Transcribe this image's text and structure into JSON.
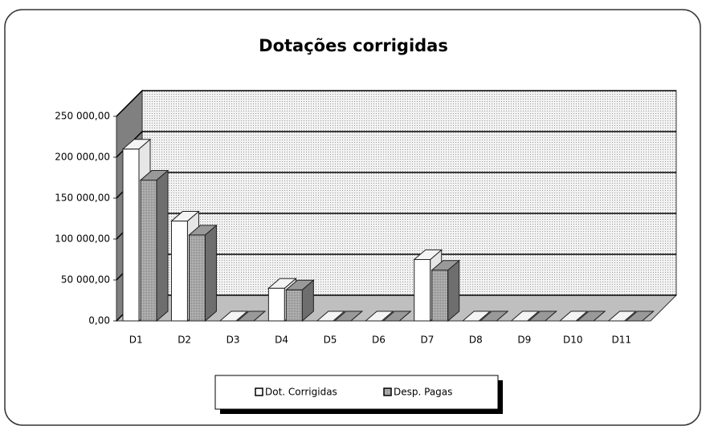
{
  "chart_data": {
    "type": "bar3d",
    "title": "Dotações corrigidas",
    "categories": [
      "D1",
      "D2",
      "D3",
      "D4",
      "D5",
      "D6",
      "D7",
      "D8",
      "D9",
      "D10",
      "D11"
    ],
    "series": [
      {
        "name": "Dot. Corrigidas",
        "color": "#ffffff",
        "values": [
          210000,
          122000,
          0,
          40000,
          0,
          0,
          75000,
          0,
          0,
          0,
          0
        ]
      },
      {
        "name": "Desp. Pagas",
        "color": "#a6a6a6",
        "values": [
          172000,
          105000,
          0,
          38000,
          0,
          0,
          62000,
          0,
          0,
          0,
          0
        ]
      }
    ],
    "ylim": [
      0,
      250000
    ],
    "yticks": [
      {
        "value": 0,
        "label": "0,00"
      },
      {
        "value": 50000,
        "label": "50 000,00"
      },
      {
        "value": 100000,
        "label": "100 000,00"
      },
      {
        "value": 150000,
        "label": "150 000,00"
      },
      {
        "value": 200000,
        "label": "200 000,00"
      },
      {
        "value": 250000,
        "label": "250 000,00"
      }
    ],
    "grid": true,
    "legend": "bottom"
  }
}
